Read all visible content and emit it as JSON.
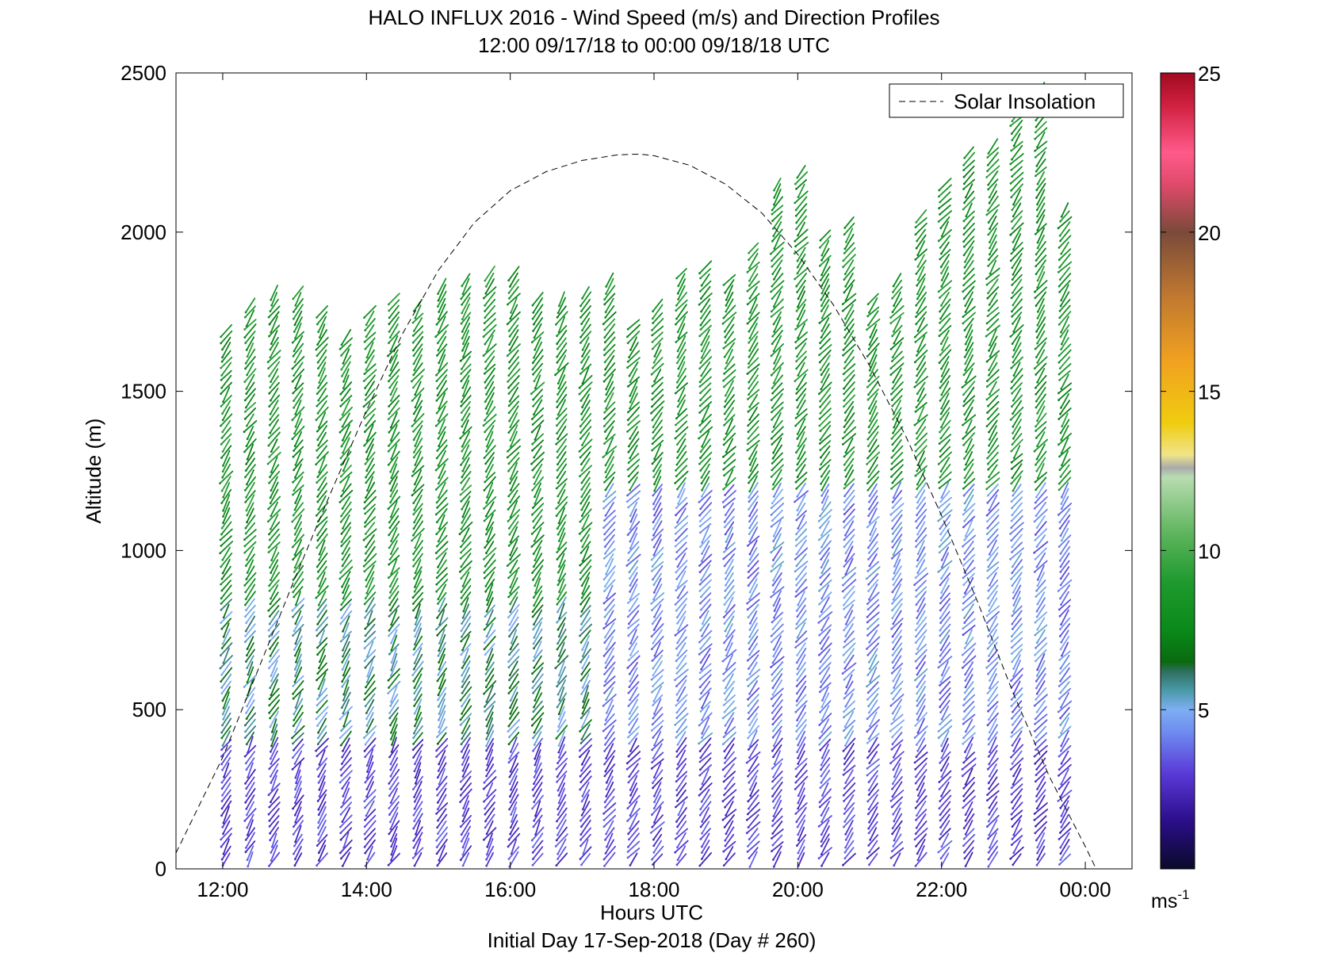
{
  "chart_data": {
    "type": "wind_barb_profile",
    "title_line1": "HALO INFLUX 2016 - Wind Speed (m/s) and Direction Profiles",
    "title_line2": "12:00 09/17/18 to 00:00 09/18/18  UTC",
    "xlabel": "Hours UTC",
    "xlabel2": "Initial Day 17-Sep-2018 (Day # 260)",
    "ylabel": "Altitude (m)",
    "xlim": [
      11.35,
      24.65
    ],
    "ylim": [
      0,
      2500
    ],
    "x_ticks": [
      {
        "value": 12,
        "label": "12:00"
      },
      {
        "value": 14,
        "label": "14:00"
      },
      {
        "value": 16,
        "label": "16:00"
      },
      {
        "value": 18,
        "label": "18:00"
      },
      {
        "value": 20,
        "label": "20:00"
      },
      {
        "value": 22,
        "label": "22:00"
      },
      {
        "value": 24,
        "label": "00:00"
      }
    ],
    "y_ticks": [
      0,
      500,
      1000,
      1500,
      2000,
      2500
    ],
    "colorbar": {
      "min": 0,
      "max": 25,
      "ticks": [
        5,
        10,
        15,
        20,
        25
      ],
      "unit_label": "ms",
      "unit_exp": "-1",
      "stops": [
        {
          "v": 0,
          "c": "#0a0a2a"
        },
        {
          "v": 1.5,
          "c": "#2a0e8a"
        },
        {
          "v": 3,
          "c": "#5a3ad8"
        },
        {
          "v": 4.3,
          "c": "#6e8cf0"
        },
        {
          "v": 5,
          "c": "#7eaef2"
        },
        {
          "v": 5.6,
          "c": "#4a9aa8"
        },
        {
          "v": 6.2,
          "c": "#2f6f60"
        },
        {
          "v": 6.5,
          "c": "#0a6a10"
        },
        {
          "v": 7.5,
          "c": "#0a8a1a"
        },
        {
          "v": 9,
          "c": "#1f9a2e"
        },
        {
          "v": 10.5,
          "c": "#5cb45c"
        },
        {
          "v": 12.3,
          "c": "#b8dcb0"
        },
        {
          "v": 12.6,
          "c": "#aaaaaa"
        },
        {
          "v": 13,
          "c": "#f0e48a"
        },
        {
          "v": 14,
          "c": "#f0cc10"
        },
        {
          "v": 16,
          "c": "#f0a020"
        },
        {
          "v": 18,
          "c": "#c07830"
        },
        {
          "v": 20,
          "c": "#7a4a3a"
        },
        {
          "v": 21.5,
          "c": "#e04a6a"
        },
        {
          "v": 22.5,
          "c": "#ff5a8a"
        },
        {
          "v": 24,
          "c": "#d02040"
        },
        {
          "v": 25,
          "c": "#a00a20"
        }
      ]
    },
    "legend": {
      "label": "Solar Insolation",
      "position": "top-right",
      "style": "dashed"
    },
    "solar_insolation": {
      "x": [
        11.35,
        12.0,
        12.5,
        13.0,
        13.5,
        14.0,
        14.5,
        15.0,
        15.5,
        16.0,
        16.5,
        17.0,
        17.5,
        17.8,
        18.0,
        18.5,
        19.0,
        19.5,
        20.0,
        20.5,
        21.0,
        21.5,
        22.0,
        22.5,
        23.0,
        23.5,
        24.0,
        24.15
      ],
      "y": [
        50,
        350,
        630,
        910,
        1180,
        1440,
        1680,
        1880,
        2030,
        2130,
        2190,
        2225,
        2243,
        2245,
        2240,
        2210,
        2150,
        2060,
        1930,
        1770,
        1580,
        1360,
        1110,
        840,
        550,
        290,
        70,
        0
      ]
    },
    "profiles": {
      "x_start": 12.05,
      "x_step": 0.3333,
      "count": 36,
      "max_alt": [
        1700,
        1780,
        1820,
        1820,
        1760,
        1680,
        1760,
        1790,
        1780,
        1830,
        1850,
        1870,
        1880,
        1790,
        1800,
        1820,
        1850,
        1720,
        1780,
        1880,
        1900,
        1860,
        1950,
        2150,
        2200,
        2000,
        2030,
        1800,
        1850,
        2050,
        2150,
        2250,
        2280,
        2400,
        2450,
        2080
      ],
      "wind_speed_note": "speed ~2-4 m/s below 400 m, ~5 m/s in 400-900 m, ~7-9 m/s above; afternoon columns stay slower (3-5 m/s) up to ~1200 m"
    }
  }
}
